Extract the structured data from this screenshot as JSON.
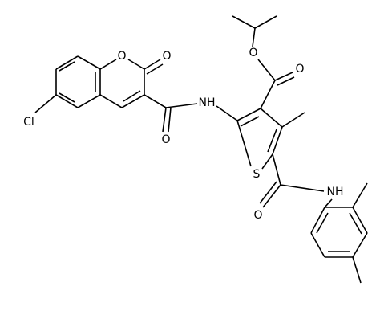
{
  "labels": [
    "Cl",
    "O",
    "O",
    "O",
    "NH",
    "S",
    "O",
    "O",
    "O",
    "NH"
  ]
}
